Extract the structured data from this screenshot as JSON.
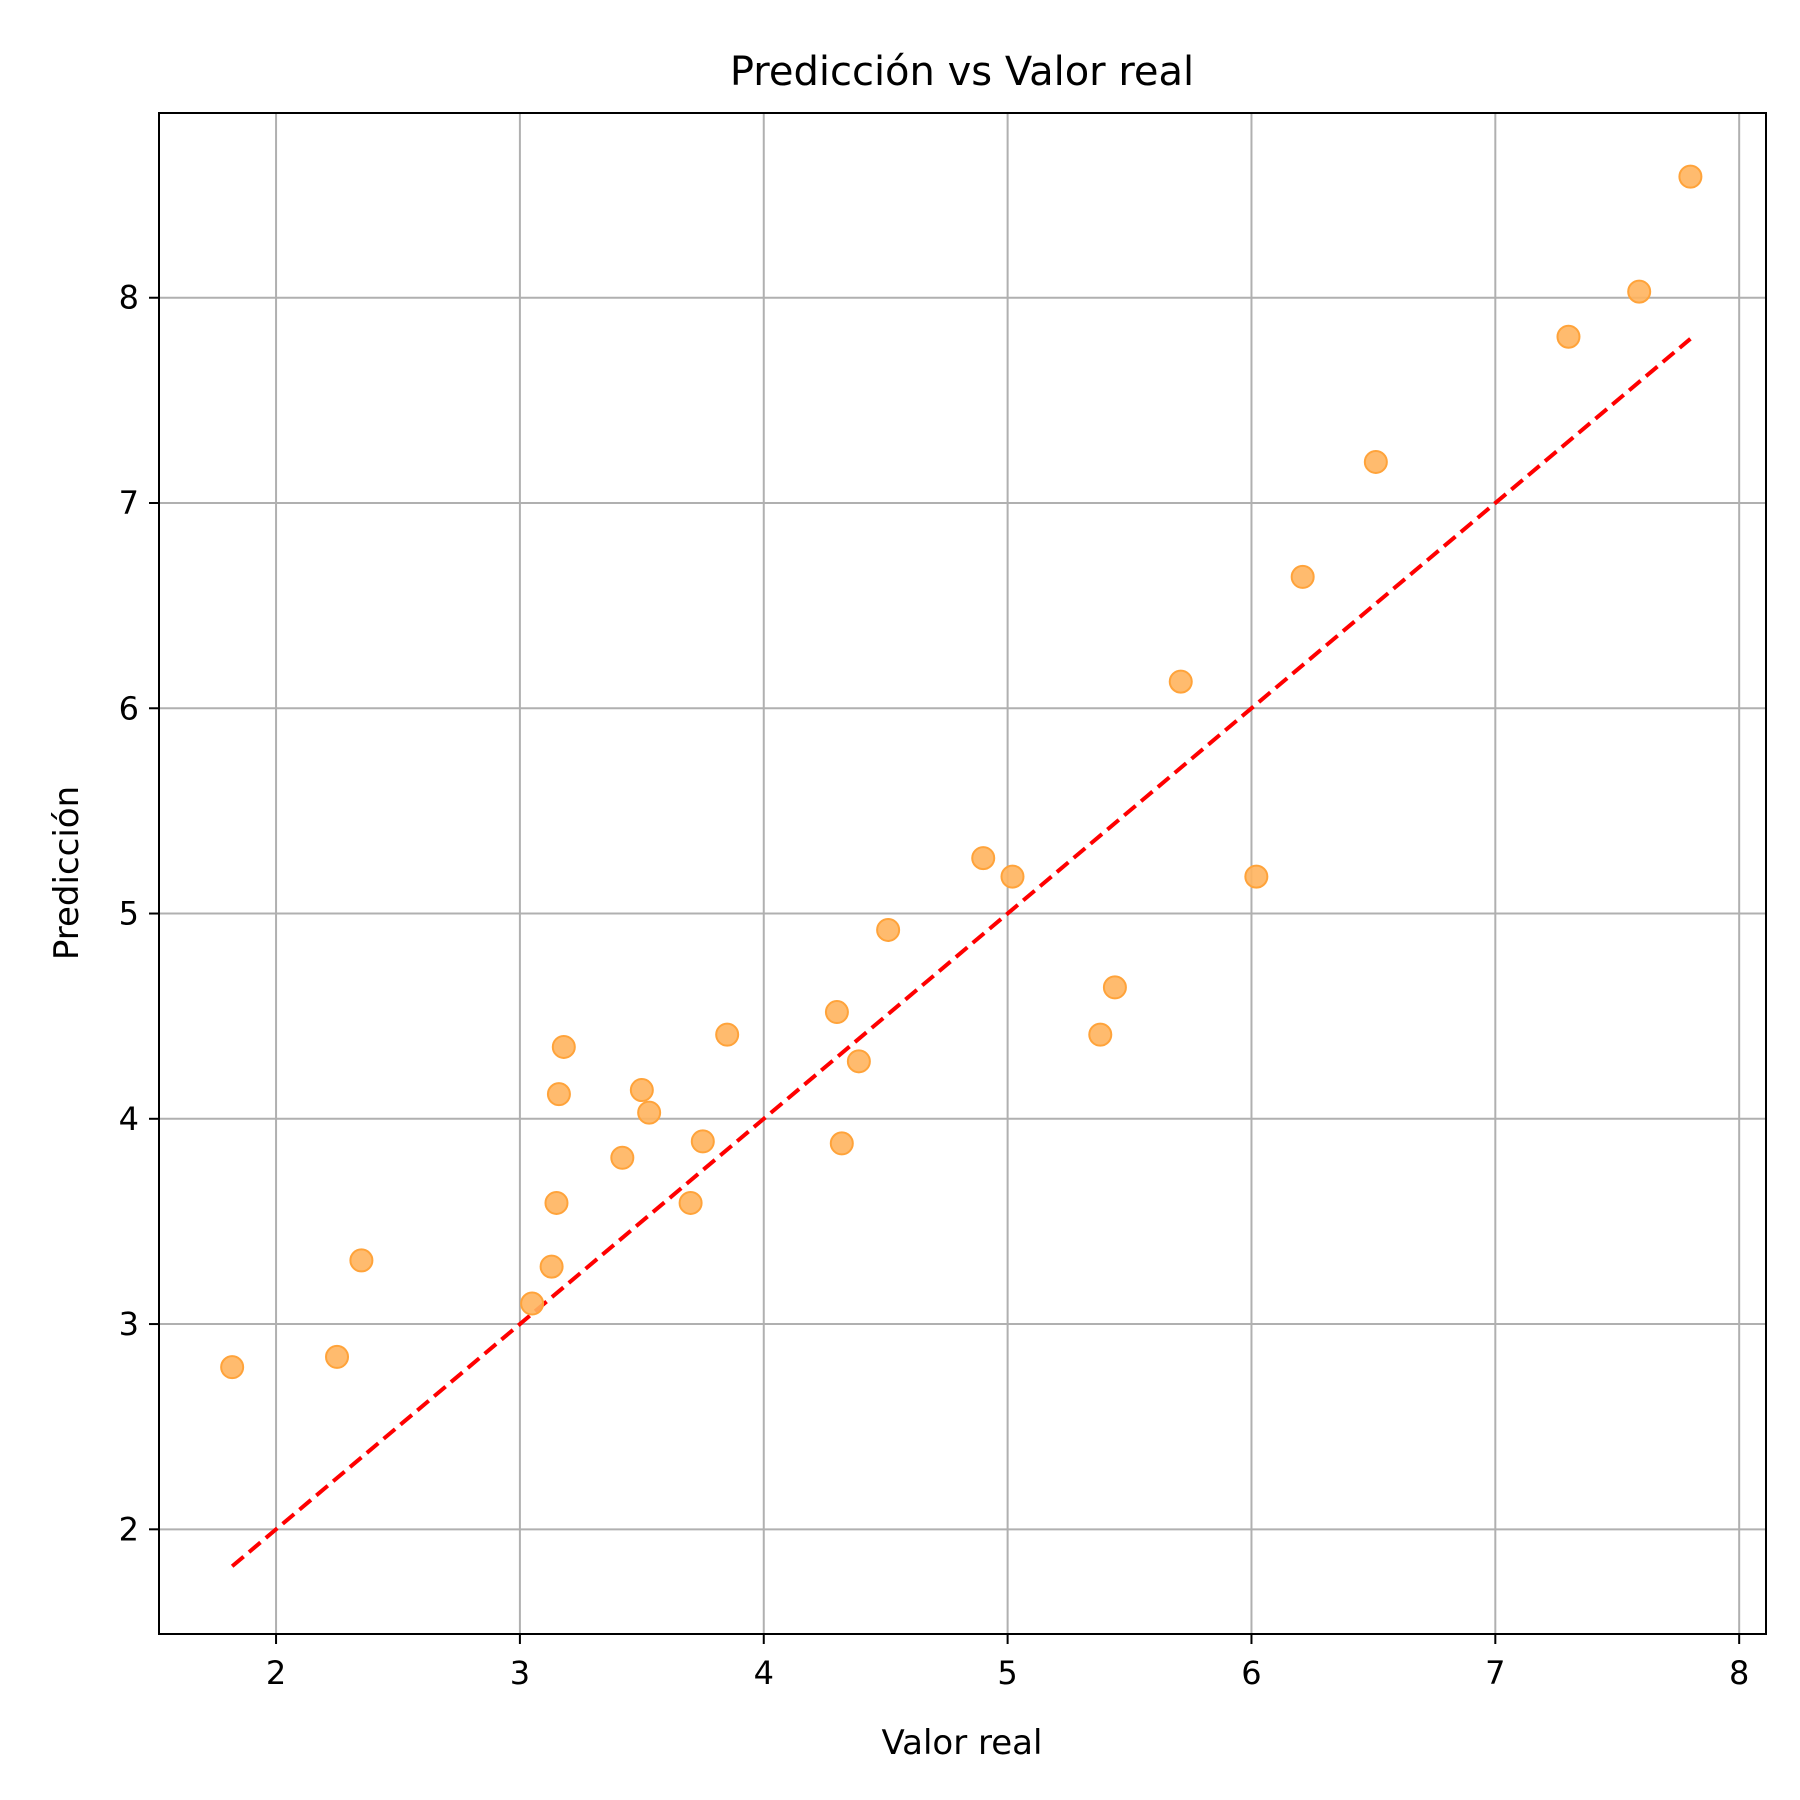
{
  "chart_data": {
    "type": "scatter",
    "title": "Predicción vs Valor real",
    "xlabel": "Valor real",
    "ylabel": "Predicción",
    "xlim": [
      1.52,
      8.11
    ],
    "ylim": [
      1.49,
      8.9
    ],
    "xticks": [
      2,
      3,
      4,
      5,
      6,
      7,
      8
    ],
    "yticks": [
      2,
      3,
      4,
      5,
      6,
      7,
      8
    ],
    "grid": true,
    "colors": {
      "point_fill": "#ffb45e",
      "point_edge": "#ffa33a",
      "reference_line": "#ff0000"
    },
    "series": [
      {
        "x": [
          1.82,
          2.25,
          2.35,
          3.05,
          3.13,
          3.15,
          3.16,
          3.18,
          3.42,
          3.5,
          3.53,
          3.7,
          3.75,
          3.85,
          4.3,
          4.32,
          4.39,
          4.51,
          4.9,
          5.02,
          5.38,
          5.44,
          5.71,
          6.02,
          6.21,
          6.51,
          7.3,
          7.59,
          7.8
        ],
        "y": [
          2.79,
          2.84,
          3.31,
          3.1,
          3.28,
          3.59,
          4.12,
          4.35,
          3.81,
          4.14,
          4.03,
          3.59,
          3.89,
          4.41,
          4.52,
          3.88,
          4.28,
          4.92,
          5.27,
          5.18,
          4.41,
          4.64,
          6.13,
          5.18,
          6.64,
          7.2,
          7.81,
          8.03,
          8.59
        ]
      }
    ],
    "reference_line": {
      "x": [
        1.82,
        7.8
      ],
      "y": [
        1.82,
        7.8
      ],
      "style": "dashed"
    }
  }
}
